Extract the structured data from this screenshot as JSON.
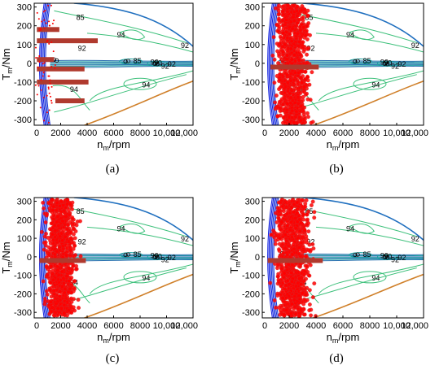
{
  "chart_data": [
    {
      "type": "scatter",
      "panel": "(a)",
      "xlabel_main": "n",
      "xlabel_sub": "m",
      "xlabel_unit": "/rpm",
      "ylabel_main": "T",
      "ylabel_sub": "m",
      "ylabel_unit": "/Nm",
      "xlim": [
        0,
        12000
      ],
      "ylim": [
        -330,
        320
      ],
      "xticks": [
        "0",
        "2000",
        "4000",
        "6000",
        "8000",
        "10,000",
        "12,000"
      ],
      "yticks": [
        "300",
        "200",
        "100",
        "0",
        "-100",
        "-200",
        "-300"
      ],
      "contour_labels": [
        "85",
        "90",
        "92",
        "94",
        "92",
        "94",
        "85",
        "90",
        "92",
        "92",
        "94"
      ],
      "points_style": "horizontal bands",
      "bands": [
        {
          "x0": 200,
          "x1": 1900,
          "y": 180
        },
        {
          "x0": 200,
          "x1": 4800,
          "y": 120
        },
        {
          "x0": 200,
          "x1": 3800,
          "y": -30
        },
        {
          "x0": 200,
          "x1": 4100,
          "y": -100
        },
        {
          "x0": 1600,
          "x1": 3800,
          "y": -200
        },
        {
          "x0": 200,
          "x1": 1500,
          "y": 20
        }
      ]
    },
    {
      "type": "scatter",
      "panel": "(b)",
      "xlabel_main": "n",
      "xlabel_sub": "m",
      "xlabel_unit": "/rpm",
      "ylabel_main": "T",
      "ylabel_sub": "m",
      "ylabel_unit": "/Nm",
      "xlim": [
        0,
        12000
      ],
      "ylim": [
        -330,
        320
      ],
      "xticks": [
        "0",
        "2000",
        "4000",
        "6000",
        "8000",
        "10,000",
        "12,000"
      ],
      "yticks": [
        "300",
        "200",
        "100",
        "0",
        "-100",
        "-200",
        "-300"
      ],
      "contour_labels": [
        "85",
        "90",
        "92",
        "94",
        "92",
        "94",
        "85",
        "90",
        "92",
        "92",
        "94"
      ],
      "points_style": "dense cloud",
      "cloud": {
        "x0": 600,
        "x1": 3900,
        "y0": -320,
        "y1": 310
      }
    },
    {
      "type": "scatter",
      "panel": "(c)",
      "xlabel_main": "n",
      "xlabel_sub": "m",
      "xlabel_unit": "/rpm",
      "ylabel_main": "T",
      "ylabel_sub": "m",
      "ylabel_unit": "/Nm",
      "xlim": [
        0,
        12000
      ],
      "ylim": [
        -330,
        320
      ],
      "xticks": [
        "0",
        "2000",
        "4000",
        "6000",
        "8000",
        "10,000",
        "12,000"
      ],
      "yticks": [
        "300",
        "200",
        "100",
        "0",
        "-100",
        "-200",
        "-300"
      ],
      "contour_labels": [
        "85",
        "90",
        "92",
        "94",
        "92",
        "94",
        "85",
        "90",
        "92",
        "92",
        "94"
      ],
      "points_style": "dense cloud",
      "cloud": {
        "x0": 400,
        "x1": 3600,
        "y0": -320,
        "y1": 310
      }
    },
    {
      "type": "scatter",
      "panel": "(d)",
      "xlabel_main": "n",
      "xlabel_sub": "m",
      "xlabel_unit": "/rpm",
      "ylabel_main": "T",
      "ylabel_sub": "m",
      "ylabel_unit": "/Nm",
      "xlim": [
        0,
        12000
      ],
      "ylim": [
        -330,
        320
      ],
      "xticks": [
        "0",
        "2000",
        "4000",
        "6000",
        "8000",
        "10,000",
        "12,000"
      ],
      "yticks": [
        "300",
        "200",
        "100",
        "0",
        "-100",
        "-200",
        "-300"
      ],
      "contour_labels": [
        "85",
        "90",
        "92",
        "94",
        "92",
        "94",
        "85",
        "90",
        "92",
        "92",
        "94"
      ],
      "points_style": "dense cloud",
      "cloud": {
        "x0": 400,
        "x1": 4200,
        "y0": -320,
        "y1": 310
      }
    }
  ],
  "colors": {
    "points": "#ff0000",
    "points_edge": "#cc3333",
    "limit_curve": "#1f6fbf",
    "gen_curve": "#d0802a",
    "contour_low": "#1733d6",
    "contour_mid": "#1aa0a0",
    "contour_high": "#3cc07a",
    "band": "#b03a2e"
  }
}
